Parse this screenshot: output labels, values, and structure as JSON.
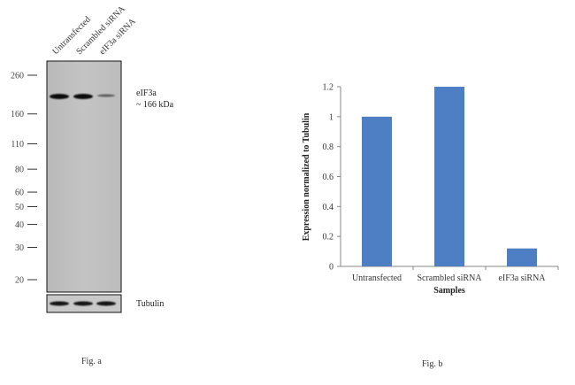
{
  "blot": {
    "lanes": [
      "Untransfected",
      "Scrambled siRNA",
      "eIF3a siRNA"
    ],
    "markers": [
      260,
      160,
      110,
      80,
      60,
      50,
      40,
      30,
      20
    ],
    "band_label_line1": "eIF3a",
    "band_label_line2": "~ 166 kDa",
    "loading_label": "Tubulin",
    "caption": "Fig. a"
  },
  "chart_data": {
    "type": "bar",
    "categories": [
      "Untransfected",
      "Scrambled siRNA",
      "eIF3a siRNA"
    ],
    "values": [
      1.0,
      1.2,
      0.12
    ],
    "xlabel": "Samples",
    "ylabel": "Expression  normalized to Tubulin",
    "ylim": [
      0,
      1.2
    ],
    "yticks": [
      0,
      0.2,
      0.4,
      0.6,
      0.8,
      1,
      1.2
    ],
    "ytick_labels": [
      "0",
      "0.2",
      "0.4",
      "0.6",
      "0.8",
      "1",
      "1.2"
    ],
    "bar_color": "#4e7fc4",
    "grid": false,
    "legend": false,
    "caption": "Fig. b"
  }
}
